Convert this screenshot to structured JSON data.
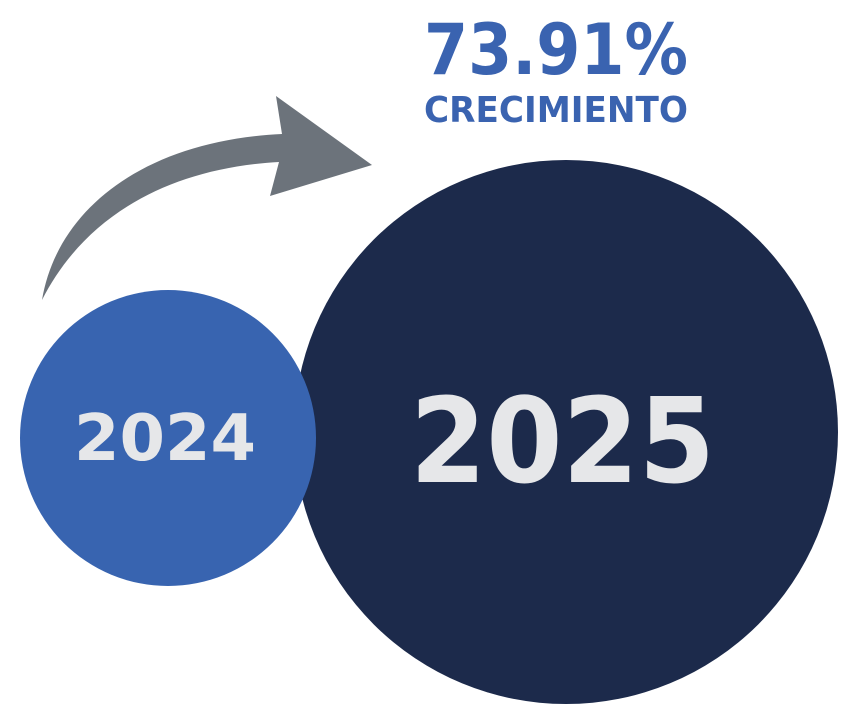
{
  "growth": {
    "value": "73.91%",
    "label": "CRECIMIENTO"
  },
  "circles": [
    {
      "label": "2024"
    },
    {
      "label": "2025"
    }
  ]
}
